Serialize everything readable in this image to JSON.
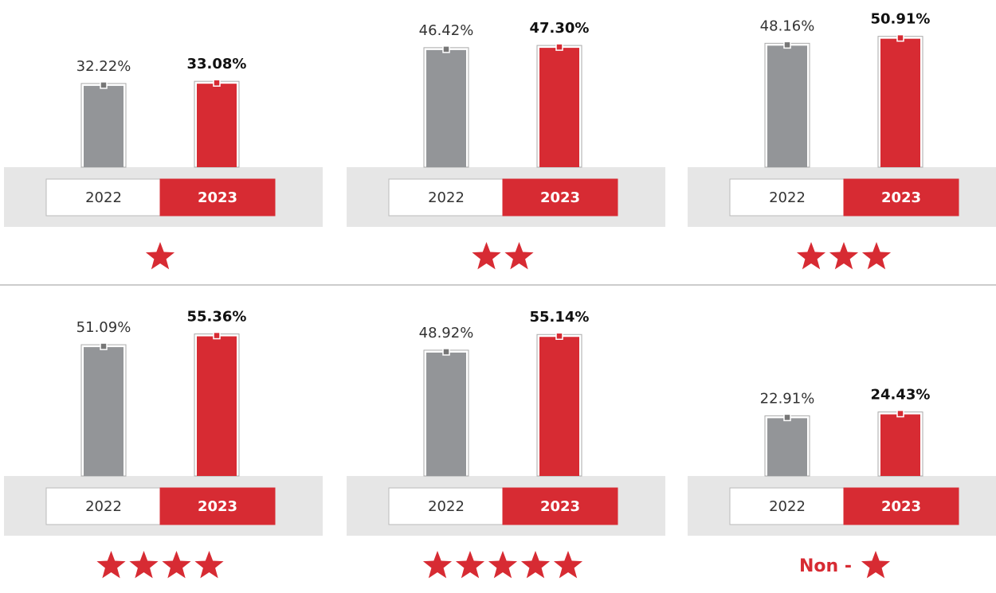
{
  "chart_data": [
    {
      "type": "bar",
      "categories": [
        "2022",
        "2023"
      ],
      "values": [
        32.22,
        33.08
      ],
      "value_labels": [
        "32.22%",
        "33.08%"
      ],
      "colors": [
        "#939598",
        "#d72b33"
      ],
      "ylim": [
        0,
        65
      ],
      "stars": 1
    },
    {
      "type": "bar",
      "categories": [
        "2022",
        "2023"
      ],
      "values": [
        46.42,
        47.3
      ],
      "value_labels": [
        "46.42%",
        "47.30%"
      ],
      "colors": [
        "#939598",
        "#d72b33"
      ],
      "ylim": [
        0,
        65
      ],
      "stars": 2
    },
    {
      "type": "bar",
      "categories": [
        "2022",
        "2023"
      ],
      "values": [
        48.16,
        50.91
      ],
      "value_labels": [
        "48.16%",
        "50.91%"
      ],
      "colors": [
        "#939598",
        "#d72b33"
      ],
      "ylim": [
        0,
        65
      ],
      "stars": 3
    },
    {
      "type": "bar",
      "categories": [
        "2022",
        "2023"
      ],
      "values": [
        51.09,
        55.36
      ],
      "value_labels": [
        "51.09%",
        "55.36%"
      ],
      "colors": [
        "#939598",
        "#d72b33"
      ],
      "ylim": [
        0,
        65
      ],
      "stars": 4
    },
    {
      "type": "bar",
      "categories": [
        "2022",
        "2023"
      ],
      "values": [
        48.92,
        55.14
      ],
      "value_labels": [
        "48.92%",
        "55.14%"
      ],
      "colors": [
        "#939598",
        "#d72b33"
      ],
      "ylim": [
        0,
        65
      ],
      "stars": 5
    },
    {
      "type": "bar",
      "categories": [
        "2022",
        "2023"
      ],
      "values": [
        22.91,
        24.43
      ],
      "value_labels": [
        "22.91%",
        "24.43%"
      ],
      "colors": [
        "#939598",
        "#d72b33"
      ],
      "ylim": [
        0,
        65
      ],
      "stars": 1,
      "prefix": "Non -"
    }
  ]
}
